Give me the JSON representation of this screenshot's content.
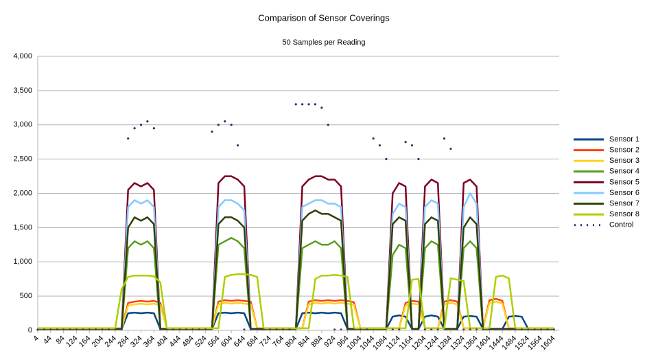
{
  "chart_data": {
    "type": "line",
    "title": "Comparison of Sensor Coverings",
    "subtitle": "50 Samples per Reading",
    "x": [
      4,
      24,
      44,
      64,
      84,
      104,
      124,
      144,
      164,
      184,
      204,
      224,
      244,
      264,
      284,
      304,
      324,
      344,
      364,
      384,
      404,
      424,
      444,
      464,
      484,
      504,
      524,
      544,
      564,
      584,
      604,
      624,
      644,
      664,
      684,
      704,
      724,
      744,
      764,
      784,
      804,
      824,
      844,
      864,
      884,
      904,
      924,
      944,
      964,
      984,
      1004,
      1024,
      1044,
      1064,
      1084,
      1104,
      1124,
      1144,
      1164,
      1184,
      1204,
      1224,
      1244,
      1264,
      1284,
      1304,
      1324,
      1344,
      1364,
      1384,
      1404,
      1424,
      1444,
      1464,
      1484,
      1504,
      1524,
      1544,
      1564,
      1584,
      1604
    ],
    "xlim": [
      4,
      1620
    ],
    "xticks": [
      4,
      44,
      84,
      124,
      164,
      204,
      244,
      284,
      324,
      364,
      404,
      444,
      484,
      524,
      564,
      604,
      644,
      684,
      724,
      764,
      804,
      844,
      884,
      924,
      964,
      1004,
      1044,
      1084,
      1124,
      1164,
      1204,
      1244,
      1284,
      1324,
      1364,
      1404,
      1444,
      1484,
      1524,
      1564,
      1604
    ],
    "ylim": [
      0,
      4000
    ],
    "yticks": [
      0,
      500,
      {
        "value": 1000,
        "label": "1,000"
      },
      {
        "value": 1500,
        "label": "1,500"
      },
      {
        "value": 2000,
        "label": "2,000"
      },
      {
        "value": 2500,
        "label": "2,500"
      },
      {
        "value": 3000,
        "label": "3,000"
      },
      {
        "value": 3500,
        "label": "3,500"
      },
      {
        "value": 4000,
        "label": "4,000"
      }
    ],
    "grid": true,
    "legend": "right",
    "series": [
      {
        "name": "Sensor 1",
        "color": "#004586",
        "line_style": "solid",
        "values": [
          20,
          20,
          20,
          20,
          20,
          20,
          20,
          20,
          20,
          20,
          20,
          20,
          20,
          20,
          250,
          260,
          250,
          260,
          250,
          20,
          20,
          20,
          20,
          20,
          20,
          20,
          20,
          20,
          250,
          260,
          250,
          260,
          250,
          20,
          20,
          20,
          20,
          20,
          20,
          20,
          20,
          250,
          260,
          250,
          260,
          250,
          260,
          250,
          20,
          20,
          20,
          20,
          20,
          20,
          20,
          200,
          220,
          200,
          20,
          20,
          200,
          220,
          200,
          20,
          20,
          20,
          200,
          210,
          200,
          20,
          20,
          20,
          20,
          200,
          210,
          200,
          20,
          20,
          20,
          20,
          20
        ]
      },
      {
        "name": "Sensor 2",
        "color": "#ff420e",
        "line_style": "solid",
        "values": [
          30,
          30,
          30,
          30,
          30,
          30,
          30,
          30,
          30,
          30,
          30,
          30,
          30,
          30,
          400,
          420,
          430,
          420,
          430,
          400,
          30,
          30,
          30,
          30,
          30,
          30,
          30,
          30,
          420,
          440,
          430,
          440,
          430,
          420,
          30,
          30,
          30,
          30,
          30,
          30,
          30,
          30,
          420,
          440,
          430,
          440,
          430,
          440,
          430,
          410,
          30,
          30,
          30,
          30,
          30,
          30,
          30,
          400,
          430,
          420,
          30,
          30,
          30,
          420,
          440,
          420,
          30,
          30,
          30,
          30,
          440,
          460,
          430,
          30,
          30,
          30,
          30,
          30,
          30,
          30,
          30
        ]
      },
      {
        "name": "Sensor 3",
        "color": "#ffd320",
        "line_style": "solid",
        "values": [
          30,
          30,
          30,
          30,
          30,
          30,
          30,
          30,
          30,
          30,
          30,
          30,
          30,
          30,
          360,
          380,
          390,
          380,
          390,
          370,
          30,
          30,
          30,
          30,
          30,
          30,
          30,
          30,
          380,
          400,
          390,
          400,
          390,
          380,
          30,
          30,
          30,
          30,
          30,
          30,
          30,
          30,
          380,
          400,
          390,
          400,
          390,
          400,
          390,
          370,
          30,
          30,
          30,
          30,
          30,
          30,
          30,
          360,
          390,
          380,
          30,
          30,
          30,
          380,
          400,
          380,
          30,
          30,
          30,
          30,
          400,
          420,
          390,
          30,
          30,
          30,
          30,
          30,
          30,
          30,
          30
        ]
      },
      {
        "name": "Sensor 4",
        "color": "#579d1c",
        "line_style": "solid",
        "values": [
          20,
          20,
          20,
          20,
          20,
          20,
          20,
          20,
          20,
          20,
          20,
          20,
          20,
          20,
          1200,
          1300,
          1250,
          1300,
          1200,
          20,
          20,
          20,
          20,
          20,
          20,
          20,
          20,
          20,
          1250,
          1300,
          1350,
          1300,
          1200,
          20,
          20,
          20,
          20,
          20,
          20,
          20,
          20,
          1200,
          1250,
          1300,
          1250,
          1250,
          1300,
          1200,
          20,
          20,
          20,
          20,
          20,
          20,
          20,
          1100,
          1250,
          1200,
          20,
          20,
          1200,
          1300,
          1250,
          20,
          20,
          20,
          1200,
          1300,
          1200,
          20,
          20,
          20,
          20,
          20,
          20,
          20,
          20,
          20,
          20,
          20,
          20
        ]
      },
      {
        "name": "Sensor 5",
        "color": "#7e0021",
        "line_style": "solid",
        "values": [
          20,
          20,
          20,
          20,
          20,
          20,
          20,
          20,
          20,
          20,
          20,
          20,
          20,
          20,
          2050,
          2150,
          2100,
          2150,
          2050,
          20,
          20,
          20,
          20,
          20,
          20,
          20,
          20,
          20,
          2150,
          2250,
          2250,
          2200,
          2100,
          20,
          20,
          20,
          20,
          20,
          20,
          20,
          20,
          2100,
          2200,
          2250,
          2250,
          2200,
          2200,
          2100,
          20,
          20,
          20,
          20,
          20,
          20,
          20,
          2000,
          2150,
          2100,
          20,
          20,
          2100,
          2200,
          2150,
          20,
          20,
          20,
          2150,
          2200,
          2100,
          20,
          20,
          20,
          20,
          20,
          20,
          20,
          20,
          20,
          20,
          20,
          20
        ]
      },
      {
        "name": "Sensor 6",
        "color": "#83caff",
        "line_style": "solid",
        "values": [
          20,
          20,
          20,
          20,
          20,
          20,
          20,
          20,
          20,
          20,
          20,
          20,
          20,
          20,
          1800,
          1900,
          1850,
          1900,
          1800,
          20,
          20,
          20,
          20,
          20,
          20,
          20,
          20,
          20,
          1800,
          1900,
          1900,
          1850,
          1750,
          20,
          20,
          20,
          20,
          20,
          20,
          20,
          20,
          1800,
          1850,
          1900,
          1900,
          1850,
          1850,
          1800,
          20,
          20,
          20,
          20,
          20,
          20,
          20,
          1700,
          1850,
          1800,
          20,
          20,
          1800,
          1900,
          1850,
          20,
          20,
          20,
          1800,
          2000,
          1850,
          20,
          20,
          20,
          20,
          20,
          20,
          20,
          20,
          20,
          20,
          20,
          20
        ]
      },
      {
        "name": "Sensor 7",
        "color": "#314004",
        "line_style": "solid",
        "values": [
          20,
          20,
          20,
          20,
          20,
          20,
          20,
          20,
          20,
          20,
          20,
          20,
          20,
          20,
          1500,
          1650,
          1600,
          1650,
          1550,
          20,
          20,
          20,
          20,
          20,
          20,
          20,
          20,
          20,
          1550,
          1650,
          1650,
          1600,
          1500,
          20,
          20,
          20,
          20,
          20,
          20,
          20,
          20,
          1600,
          1700,
          1750,
          1700,
          1700,
          1650,
          1600,
          20,
          20,
          20,
          20,
          20,
          20,
          20,
          1550,
          1650,
          1600,
          20,
          20,
          1550,
          1650,
          1600,
          20,
          20,
          20,
          1500,
          1650,
          1550,
          20,
          20,
          20,
          20,
          20,
          20,
          20,
          20,
          20,
          20,
          20,
          20
        ]
      },
      {
        "name": "Sensor 8",
        "color": "#aecf00",
        "line_style": "solid",
        "values": [
          30,
          30,
          30,
          30,
          30,
          30,
          30,
          30,
          30,
          30,
          30,
          30,
          30,
          600,
          780,
          800,
          800,
          800,
          790,
          700,
          30,
          30,
          30,
          30,
          30,
          30,
          30,
          30,
          30,
          780,
          810,
          820,
          820,
          810,
          780,
          30,
          30,
          30,
          30,
          30,
          30,
          30,
          30,
          750,
          800,
          800,
          810,
          800,
          780,
          30,
          30,
          30,
          30,
          30,
          30,
          30,
          30,
          30,
          740,
          750,
          30,
          30,
          30,
          30,
          760,
          740,
          720,
          30,
          30,
          30,
          30,
          780,
          800,
          760,
          30,
          30,
          30,
          30,
          30,
          30,
          30
        ]
      },
      {
        "name": "Control",
        "color": "#4b1f6f",
        "line_style": "dotted",
        "values": [
          10,
          10,
          10,
          10,
          10,
          10,
          10,
          10,
          10,
          10,
          10,
          10,
          10,
          10,
          2800,
          2950,
          3000,
          3050,
          2950,
          10,
          10,
          10,
          10,
          10,
          10,
          10,
          10,
          2900,
          3000,
          3050,
          3000,
          2700,
          10,
          10,
          10,
          10,
          10,
          10,
          10,
          10,
          3300,
          3300,
          3300,
          3300,
          3250,
          3000,
          10,
          10,
          10,
          10,
          10,
          10,
          2800,
          2700,
          2500,
          10,
          10,
          2750,
          2700,
          2500,
          10,
          10,
          10,
          2800,
          2650,
          10,
          10,
          10,
          10,
          10,
          10,
          10,
          10,
          10,
          10,
          10,
          10,
          10,
          10,
          10,
          10
        ]
      }
    ]
  }
}
